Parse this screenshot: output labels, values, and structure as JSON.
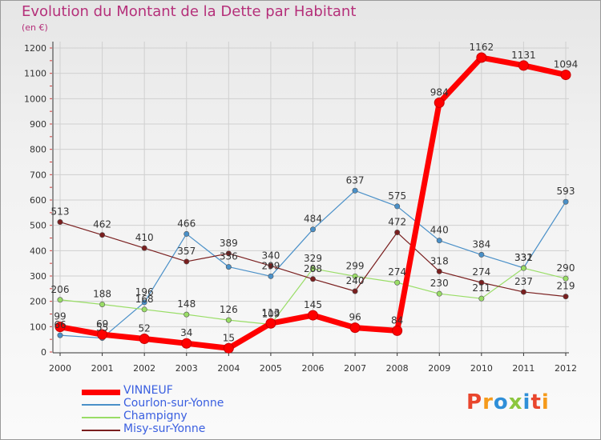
{
  "header": {
    "title": "Evolution du Montant de la Dette par Habitant",
    "subtitle": "(en €)"
  },
  "logo": {
    "text": "Proxiti",
    "colors": [
      "#e9462d",
      "#f59a1b",
      "#2f8fd8",
      "#8cc63f",
      "#2f8fd8",
      "#e9462d",
      "#f59a1b"
    ]
  },
  "chart_data": {
    "type": "line",
    "title": "Evolution du Montant de la Dette par Habitant",
    "subtitle": "(en €)",
    "xlabel": "",
    "ylabel": "",
    "x": [
      "2000",
      "2001",
      "2002",
      "2003",
      "2004",
      "2005",
      "2006",
      "2007",
      "2008",
      "2009",
      "2010",
      "2011",
      "2012"
    ],
    "ylim": [
      0,
      1200
    ],
    "yticks": [
      0,
      100,
      200,
      300,
      400,
      500,
      600,
      700,
      800,
      900,
      1000,
      1100,
      1200
    ],
    "grid": true,
    "legend_position": "bottom-left",
    "series": [
      {
        "name": "VINNEUF",
        "color": "#ff0000",
        "values": [
          99,
          69,
          52,
          34,
          15,
          113,
          145,
          96,
          84,
          984,
          1162,
          1131,
          1094
        ]
      },
      {
        "name": "Courlon-sur-Yonne",
        "color": "#4a90c8",
        "values": [
          66,
          55,
          196,
          466,
          336,
          299,
          484,
          637,
          575,
          440,
          384,
          332,
          593
        ]
      },
      {
        "name": "Champigny",
        "color": "#99dd66",
        "values": [
          206,
          188,
          168,
          148,
          126,
          109,
          329,
          299,
          274,
          230,
          211,
          331,
          290
        ]
      },
      {
        "name": "Misy-sur-Yonne",
        "color": "#7a1f1f",
        "values": [
          513,
          462,
          410,
          357,
          389,
          340,
          288,
          240,
          472,
          318,
          274,
          237,
          219
        ]
      }
    ]
  }
}
